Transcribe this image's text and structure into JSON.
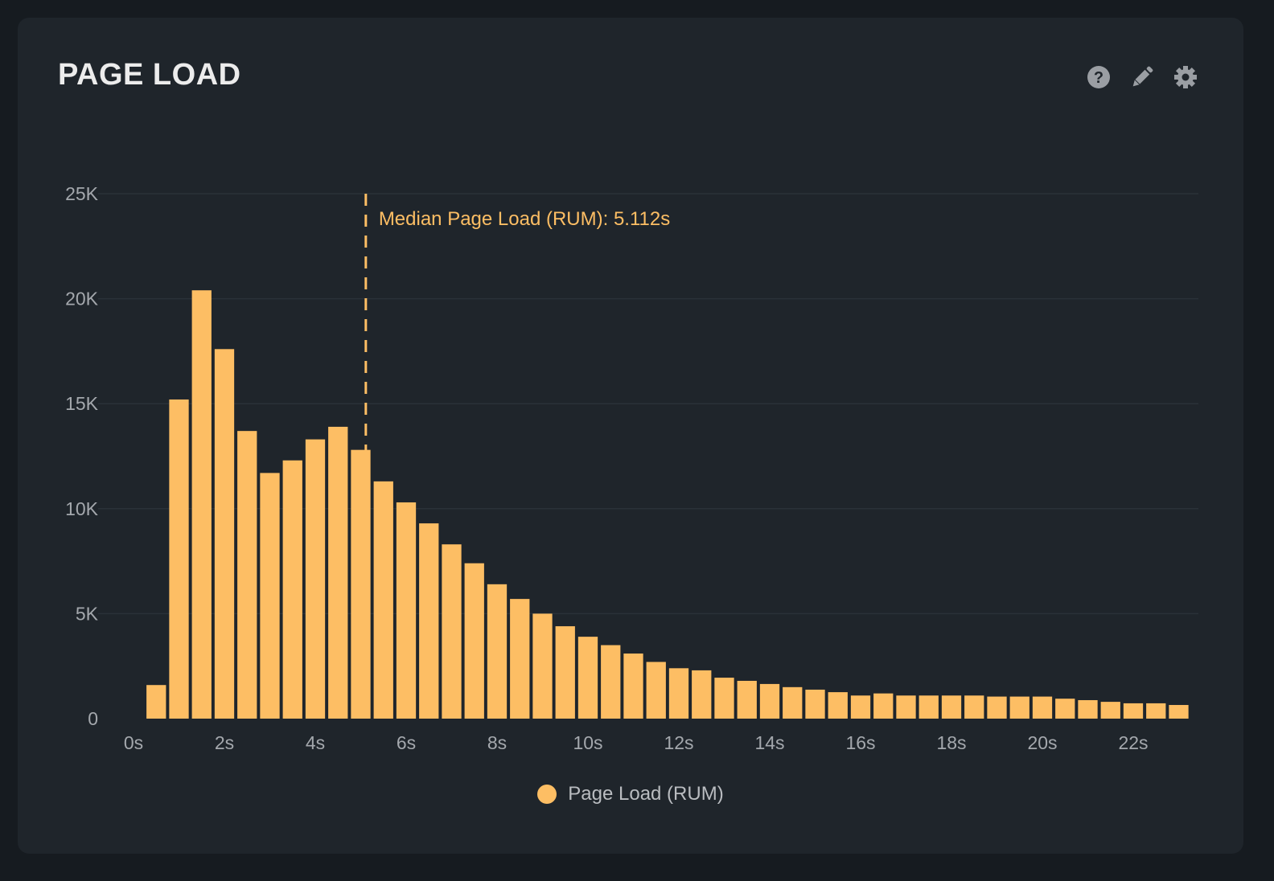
{
  "header": {
    "title": "PAGE LOAD",
    "icons": [
      "help-icon",
      "edit-icon",
      "settings-icon"
    ]
  },
  "colors": {
    "bar": "#fdbe64",
    "grid": "#2a3138",
    "tick": "#a4a8ad",
    "icon": "#9a9ea3"
  },
  "chart_data": {
    "type": "bar",
    "title": "PAGE LOAD",
    "xlabel": "",
    "ylabel": "",
    "x_unit": "s",
    "x": [
      0.5,
      1,
      1.5,
      2,
      2.5,
      3,
      3.5,
      4,
      4.5,
      5,
      5.5,
      6,
      6.5,
      7,
      7.5,
      8,
      8.5,
      9,
      9.5,
      10,
      10.5,
      11,
      11.5,
      12,
      12.5,
      13,
      13.5,
      14,
      14.5,
      15,
      15.5,
      16,
      16.5,
      17,
      17.5,
      18,
      18.5,
      19,
      19.5,
      20,
      20.5,
      21,
      21.5,
      22,
      22.5,
      23
    ],
    "series": [
      {
        "name": "Page Load (RUM)",
        "values": [
          1600,
          15200,
          20400,
          17600,
          13700,
          11700,
          12300,
          13300,
          13900,
          12800,
          11300,
          10300,
          9300,
          8300,
          7400,
          6400,
          5700,
          5000,
          4400,
          3900,
          3500,
          3100,
          2700,
          2400,
          2300,
          1950,
          1800,
          1650,
          1500,
          1380,
          1260,
          1100,
          1200,
          1100,
          1100,
          1100,
          1100,
          1050,
          1050,
          1050,
          950,
          880,
          800,
          730,
          730,
          650
        ]
      }
    ],
    "xlim": [
      0,
      23.4
    ],
    "ylim": [
      0,
      25000
    ],
    "xticks": [
      "0s",
      "2s",
      "4s",
      "6s",
      "8s",
      "10s",
      "12s",
      "14s",
      "16s",
      "18s",
      "20s",
      "22s"
    ],
    "xtick_values": [
      0,
      2,
      4,
      6,
      8,
      10,
      12,
      14,
      16,
      18,
      20,
      22
    ],
    "yticks": [
      "0",
      "5K",
      "10K",
      "15K",
      "20K",
      "25K"
    ],
    "ytick_values": [
      0,
      5000,
      10000,
      15000,
      20000,
      25000
    ],
    "grid": true,
    "legend_position": "bottom-center",
    "annotation": {
      "x": 5.112,
      "label": "Median Page Load (RUM): 5.112s"
    }
  }
}
